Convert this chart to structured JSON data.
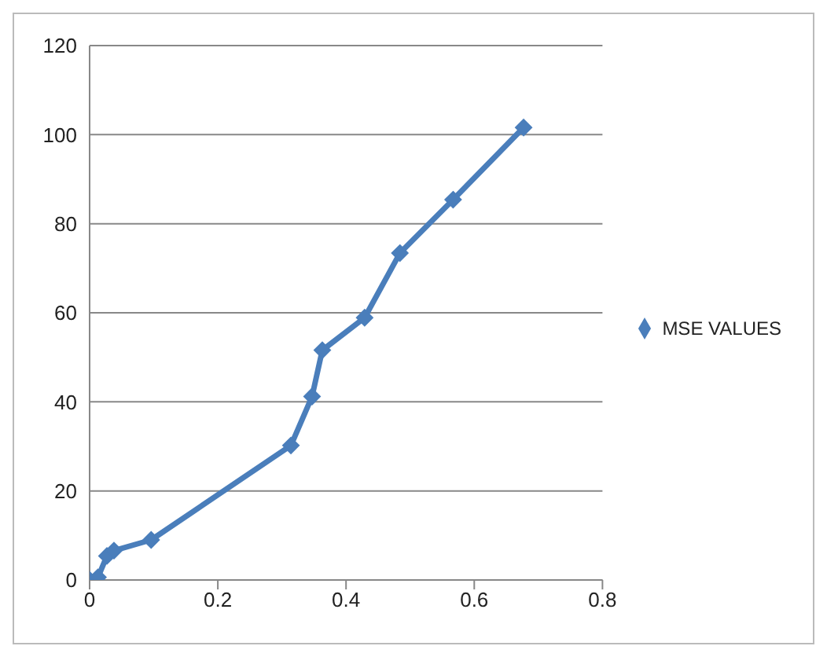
{
  "chart_data": {
    "type": "line",
    "x": [
      0,
      0.013,
      0.027,
      0.038,
      0.096,
      0.314,
      0.347,
      0.363,
      0.429,
      0.484,
      0.567,
      0.677
    ],
    "series": [
      {
        "name": "MSE VALUES",
        "color": "#4a7ebb",
        "values": [
          0,
          0.6,
          5.4,
          6.6,
          9,
          30.2,
          41.2,
          51.6,
          58.9,
          73.4,
          85.4,
          101.6
        ]
      }
    ],
    "xlim": [
      0,
      0.8
    ],
    "xticks": [
      0,
      0.2,
      0.4,
      0.6,
      0.8
    ],
    "ylim": [
      0,
      120
    ],
    "yticks": [
      0,
      20,
      40,
      60,
      80,
      100,
      120
    ],
    "grid": "y",
    "legend": "right",
    "marker": "diamond",
    "line_style": "solid"
  }
}
